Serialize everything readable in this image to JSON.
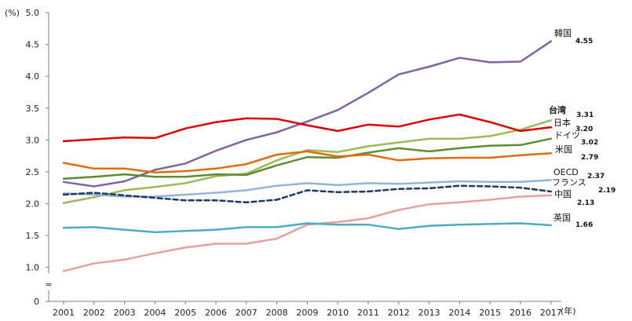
{
  "chart_data": {
    "type": "line",
    "title": "",
    "y_unit_label": "(%)",
    "x_unit_label": "(年)",
    "x": [
      "2001",
      "2002",
      "2003",
      "2004",
      "2005",
      "2006",
      "2007",
      "2008",
      "2009",
      "2010",
      "2011",
      "2012",
      "2013",
      "2014",
      "2015",
      "2016",
      "2017"
    ],
    "y_ticks": [
      "5.0",
      "4.5",
      "4.0",
      "3.5",
      "3.0",
      "2.5",
      "2.0",
      "1.5",
      "1.0",
      "0"
    ],
    "ylim": [
      0,
      5.0
    ],
    "axis_break": "≈",
    "grid": false,
    "series": [
      {
        "name": "韓国",
        "color": "#8064a2",
        "dashed": false,
        "end_label": "4.55",
        "values": [
          2.34,
          2.27,
          2.35,
          2.53,
          2.63,
          2.83,
          3.0,
          3.12,
          3.29,
          3.47,
          3.74,
          4.03,
          4.15,
          4.29,
          4.22,
          4.23,
          4.55
        ]
      },
      {
        "name": "台湾",
        "color": "#9bbb59",
        "dashed": false,
        "end_label": "3.31",
        "values": [
          2.01,
          2.1,
          2.21,
          2.26,
          2.32,
          2.43,
          2.47,
          2.68,
          2.84,
          2.81,
          2.9,
          2.96,
          3.02,
          3.02,
          3.06,
          3.16,
          3.31
        ]
      },
      {
        "name": "日本",
        "color": "#e00000",
        "dashed": false,
        "end_label": "3.20",
        "values": [
          2.98,
          3.01,
          3.04,
          3.03,
          3.18,
          3.28,
          3.34,
          3.33,
          3.23,
          3.14,
          3.24,
          3.21,
          3.32,
          3.4,
          3.28,
          3.14,
          3.2
        ]
      },
      {
        "name": "ドイツ",
        "color": "#5e8c31",
        "dashed": false,
        "end_label": "3.02",
        "values": [
          2.39,
          2.42,
          2.46,
          2.42,
          2.42,
          2.46,
          2.45,
          2.6,
          2.73,
          2.72,
          2.8,
          2.87,
          2.82,
          2.87,
          2.91,
          2.92,
          3.02
        ]
      },
      {
        "name": "米国",
        "color": "#e36c0a",
        "dashed": false,
        "end_label": "2.79",
        "values": [
          2.64,
          2.55,
          2.55,
          2.49,
          2.51,
          2.55,
          2.62,
          2.77,
          2.82,
          2.74,
          2.77,
          2.68,
          2.71,
          2.72,
          2.72,
          2.76,
          2.79
        ]
      },
      {
        "name": "OECD",
        "color": "#95b3d7",
        "dashed": false,
        "end_label": "2.37",
        "values": [
          2.16,
          2.14,
          2.11,
          2.11,
          2.14,
          2.17,
          2.21,
          2.28,
          2.32,
          2.29,
          2.32,
          2.31,
          2.33,
          2.35,
          2.34,
          2.34,
          2.37
        ]
      },
      {
        "name": "フランス",
        "color": "#1f3864",
        "dashed": true,
        "end_label": "2.19",
        "values": [
          2.14,
          2.17,
          2.13,
          2.09,
          2.05,
          2.05,
          2.02,
          2.06,
          2.21,
          2.18,
          2.19,
          2.23,
          2.24,
          2.28,
          2.27,
          2.25,
          2.19
        ]
      },
      {
        "name": "中国",
        "color": "#e6a0a0",
        "dashed": false,
        "end_label": "2.13",
        "values": [
          0.94,
          1.06,
          1.12,
          1.22,
          1.31,
          1.37,
          1.37,
          1.45,
          1.67,
          1.71,
          1.77,
          1.9,
          1.99,
          2.02,
          2.06,
          2.11,
          2.13
        ]
      },
      {
        "name": "英国",
        "color": "#4bacc6",
        "dashed": false,
        "end_label": "1.66",
        "values": [
          1.62,
          1.63,
          1.59,
          1.55,
          1.57,
          1.59,
          1.63,
          1.63,
          1.69,
          1.67,
          1.67,
          1.6,
          1.65,
          1.67,
          1.68,
          1.69,
          1.66
        ]
      }
    ]
  }
}
